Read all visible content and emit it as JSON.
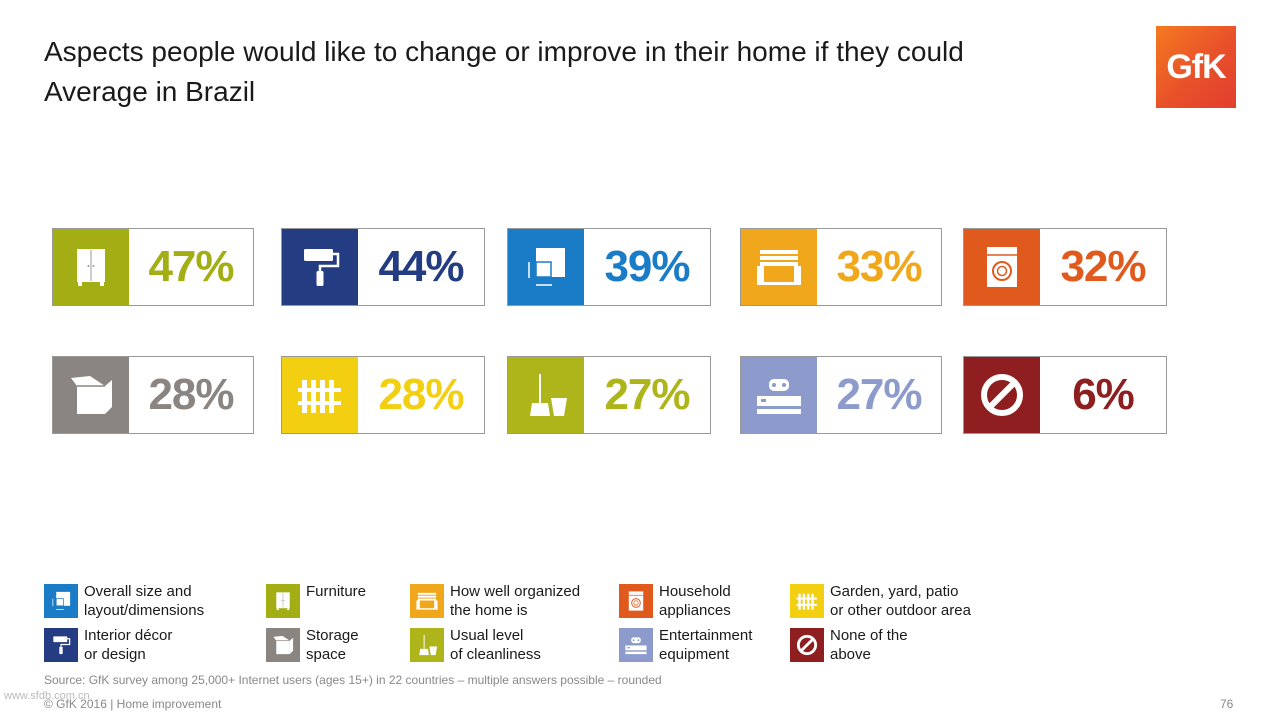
{
  "title_line1": "Aspects people would like to change or improve in their home if they could",
  "title_line2": "Average in Brazil",
  "logo_text": "GfK",
  "chart_data": {
    "type": "table",
    "unit": "%",
    "items": [
      {
        "category": "Furniture",
        "value": 47,
        "label": "47%",
        "color": "#a3ad14",
        "icon": "cabinet-icon"
      },
      {
        "category": "Interior décor or design",
        "value": 44,
        "label": "44%",
        "color": "#243c82",
        "icon": "paint-roller-icon"
      },
      {
        "category": "Overall size and layout/dimensions",
        "value": 39,
        "label": "39%",
        "color": "#1a7cc6",
        "icon": "floorplan-icon"
      },
      {
        "category": "How well organized the home is",
        "value": 33,
        "label": "33%",
        "color": "#f0a71b",
        "icon": "drawer-icon"
      },
      {
        "category": "Household appliances",
        "value": 32,
        "label": "32%",
        "color": "#e15a1d",
        "icon": "washing-machine-icon"
      },
      {
        "category": "Storage space",
        "value": 28,
        "label": "28%",
        "color": "#8a8580",
        "icon": "box-icon"
      },
      {
        "category": "Garden, yard, patio or other outdoor area",
        "value": 28,
        "label": "28%",
        "color": "#f3cf12",
        "icon": "fence-icon"
      },
      {
        "category": "Usual level of cleanliness",
        "value": 27,
        "label": "27%",
        "color": "#aeb51a",
        "icon": "broom-bucket-icon"
      },
      {
        "category": "Entertainment equipment",
        "value": 27,
        "label": "27%",
        "color": "#8c9bcb",
        "icon": "gamepad-icon"
      },
      {
        "category": "None of the above",
        "value": 6,
        "label": "6%",
        "color": "#8e1e1f",
        "icon": "prohibited-icon"
      }
    ]
  },
  "legend": [
    {
      "text": "Overall size and\nlayout/dimensions",
      "color": "#1a7cc6",
      "icon": "floorplan-icon"
    },
    {
      "text": "Furniture",
      "color": "#a3ad14",
      "icon": "cabinet-icon"
    },
    {
      "text": "How well organized\nthe home is",
      "color": "#f0a71b",
      "icon": "drawer-icon"
    },
    {
      "text": "Household\nappliances",
      "color": "#e15a1d",
      "icon": "washing-machine-icon"
    },
    {
      "text": "Garden, yard, patio\nor other outdoor area",
      "color": "#f3cf12",
      "icon": "fence-icon"
    },
    {
      "text": "Interior décor\nor design",
      "color": "#243c82",
      "icon": "paint-roller-icon"
    },
    {
      "text": "Storage\nspace",
      "color": "#8a8580",
      "icon": "box-icon"
    },
    {
      "text": "Usual level\nof cleanliness",
      "color": "#aeb51a",
      "icon": "broom-bucket-icon"
    },
    {
      "text": "Entertainment\nequipment",
      "color": "#8c9bcb",
      "icon": "gamepad-icon"
    },
    {
      "text": "None of the\nabove",
      "color": "#8e1e1f",
      "icon": "prohibited-icon"
    }
  ],
  "source": "Source: GfK survey among 25,000+ Internet users (ages 15+) in 22 countries – multiple answers possible – rounded",
  "footer": "© GfK 2016 | Home improvement",
  "watermark": "www.sfdb.com.cn",
  "page_number": "76"
}
